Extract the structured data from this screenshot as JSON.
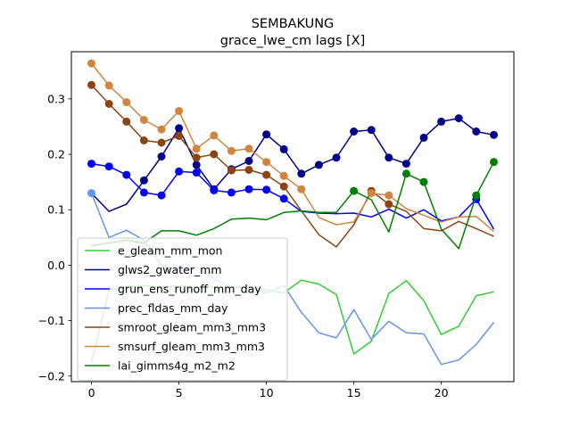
{
  "chart_data": {
    "type": "line",
    "title": "SEMBAKUNG",
    "subtitle": "grace_lwe_cm lags [X]",
    "xlabel": "",
    "ylabel": "",
    "xlim": [
      -1.15,
      24.15
    ],
    "ylim": [
      -0.21,
      0.385
    ],
    "x_ticks": [
      0,
      5,
      10,
      15,
      20
    ],
    "y_ticks": [
      -0.2,
      -0.1,
      0.0,
      0.1,
      0.2,
      0.3
    ],
    "y_tick_labels": [
      "−0.2",
      "−0.1",
      "0.0",
      "0.1",
      "0.2",
      "0.3"
    ],
    "grid": false,
    "legend_position": "lower-left",
    "x": [
      0,
      1,
      2,
      3,
      4,
      5,
      6,
      7,
      8,
      9,
      10,
      11,
      12,
      13,
      14,
      15,
      16,
      17,
      18,
      19,
      20,
      21,
      22,
      23
    ],
    "series": [
      {
        "name": "e_gleam_mm_mon",
        "color": "#32cd32",
        "values": [
          -0.175,
          -0.045,
          -0.04,
          -0.037,
          -0.04,
          -0.037,
          -0.04,
          -0.04,
          -0.039,
          -0.039,
          -0.045,
          -0.05,
          -0.027,
          -0.034,
          -0.053,
          -0.16,
          -0.137,
          -0.051,
          -0.028,
          -0.064,
          -0.125,
          -0.11,
          -0.055,
          -0.048
        ],
        "markers": []
      },
      {
        "name": "glws2_gwater_mm",
        "color": "#00008b",
        "values": [
          0.13,
          0.097,
          0.11,
          0.153,
          0.196,
          0.247,
          0.181,
          0.137,
          0.173,
          0.188,
          0.236,
          0.209,
          0.165,
          0.181,
          0.194,
          0.241,
          0.244,
          0.194,
          0.183,
          0.23,
          0.259,
          0.265,
          0.241,
          0.235
        ],
        "markers": [
          3,
          4,
          5,
          6,
          7,
          8,
          9,
          10,
          11,
          12,
          13,
          14,
          15,
          16,
          17,
          18,
          19,
          20,
          21,
          22,
          23
        ]
      },
      {
        "name": "grun_ens_runoff_mm_day",
        "color": "#0000ff",
        "values": [
          0.183,
          0.178,
          0.163,
          0.131,
          0.126,
          0.169,
          0.167,
          0.135,
          0.131,
          0.137,
          0.136,
          0.12,
          0.097,
          0.094,
          0.093,
          0.094,
          0.087,
          0.101,
          0.085,
          0.1,
          0.08,
          0.087,
          0.119,
          0.065
        ],
        "markers": [
          0,
          1,
          2,
          3,
          4,
          5,
          6,
          7,
          8,
          9,
          10,
          11,
          22
        ]
      },
      {
        "name": "prec_fldas_mm_day",
        "color": "#6495ed",
        "values": [
          0.13,
          0.05,
          0.063,
          0.045,
          0.001,
          -0.01,
          -0.004,
          -0.025,
          -0.04,
          -0.042,
          -0.05,
          -0.037,
          -0.085,
          -0.122,
          -0.131,
          -0.08,
          -0.134,
          -0.101,
          -0.122,
          -0.124,
          -0.179,
          -0.171,
          -0.143,
          -0.103
        ],
        "markers": [
          0
        ]
      },
      {
        "name": "smroot_gleam_mm3_mm3",
        "color": "#8b4513",
        "values": [
          0.325,
          0.291,
          0.259,
          0.225,
          0.221,
          0.233,
          0.194,
          0.2,
          0.171,
          0.172,
          0.163,
          0.142,
          0.098,
          0.055,
          0.033,
          0.073,
          0.134,
          0.11,
          0.097,
          0.066,
          0.062,
          0.079,
          0.066,
          0.052
        ],
        "markers": [
          0,
          1,
          2,
          3,
          4,
          5,
          6,
          7,
          8,
          9,
          10,
          11,
          16,
          17
        ]
      },
      {
        "name": "smsurf_gleam_mm3_mm3",
        "color": "#cd853f",
        "values": [
          0.364,
          0.324,
          0.294,
          0.262,
          0.245,
          0.278,
          0.21,
          0.234,
          0.206,
          0.21,
          0.186,
          0.161,
          0.137,
          0.086,
          0.073,
          0.078,
          0.13,
          0.126,
          0.102,
          0.09,
          0.078,
          0.087,
          0.088,
          0.061
        ],
        "markers": [
          0,
          1,
          2,
          3,
          4,
          5,
          6,
          7,
          8,
          9,
          10,
          11,
          12,
          16,
          17
        ]
      },
      {
        "name": "lai_gimms4g_m2_m2",
        "color": "#008000",
        "values": [
          0.035,
          0.04,
          0.045,
          0.04,
          0.062,
          0.062,
          0.054,
          0.066,
          0.083,
          0.085,
          0.082,
          0.095,
          0.098,
          0.095,
          0.095,
          0.134,
          0.118,
          0.06,
          0.165,
          0.15,
          0.065,
          0.03,
          0.126,
          0.186
        ],
        "markers": [
          15,
          18,
          19,
          22,
          23
        ]
      }
    ]
  }
}
